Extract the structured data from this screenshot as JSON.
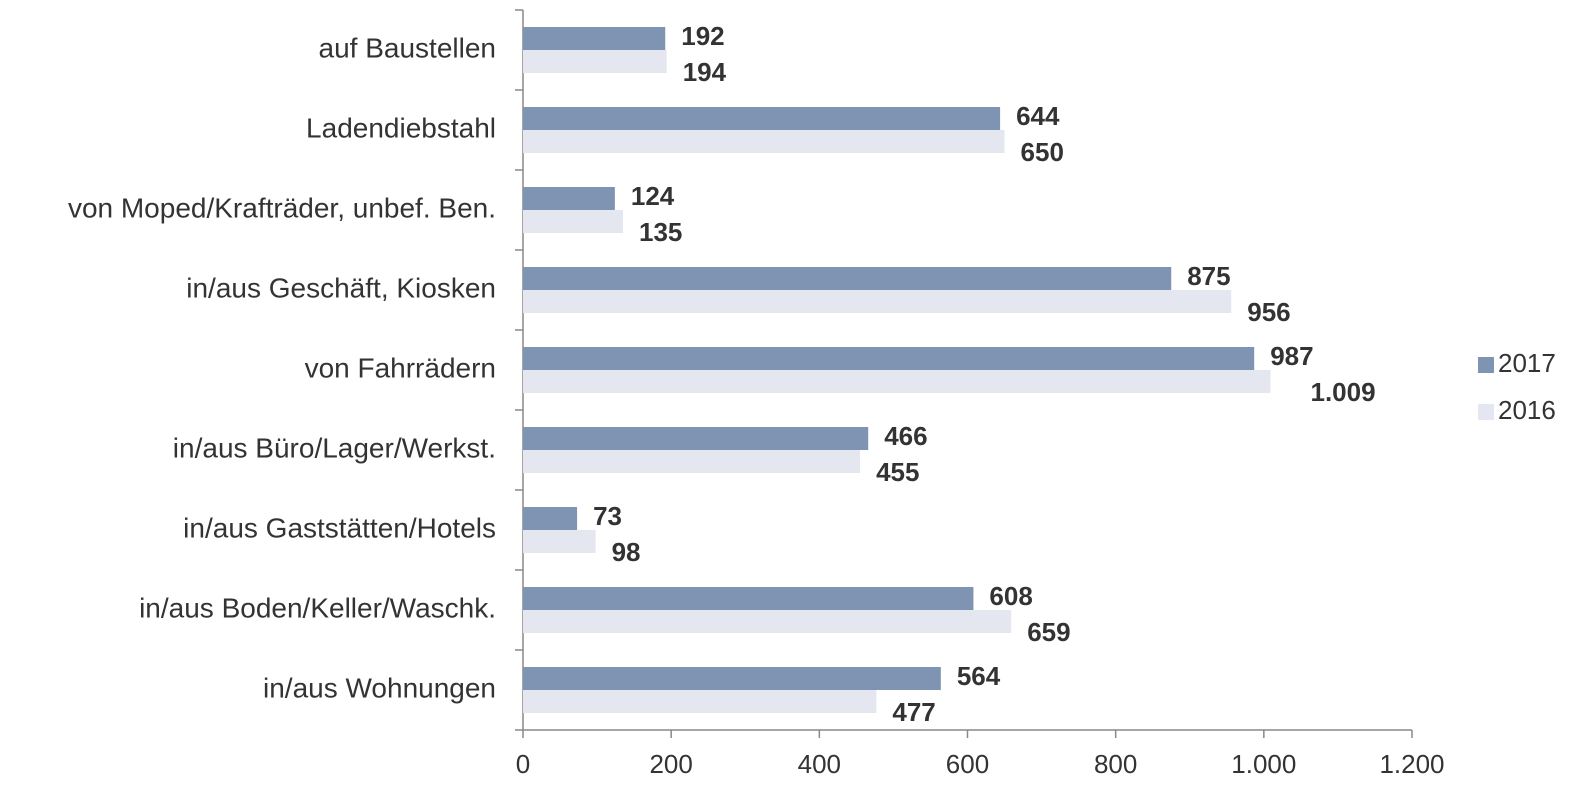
{
  "chart_data": {
    "type": "bar",
    "orientation": "horizontal",
    "categories": [
      "auf Baustellen",
      "Ladendiebstahl",
      "von Moped/Krafträder, unbef. Ben.",
      "in/aus Geschäft, Kiosken",
      "von Fahrrädern",
      "in/aus Büro/Lager/Werkst.",
      "in/aus Gaststätten/Hotels",
      "in/aus Boden/Keller/Waschk.",
      "in/aus Wohnungen"
    ],
    "series": [
      {
        "name": "2017",
        "color": "#7f93b3",
        "values": [
          192,
          644,
          124,
          875,
          987,
          466,
          73,
          608,
          564
        ]
      },
      {
        "name": "2016",
        "color": "#e4e7ef",
        "values": [
          194,
          650,
          135,
          956,
          1009,
          455,
          98,
          659,
          477
        ],
        "value_labels": [
          "194",
          "650",
          "135",
          "956",
          "1.009",
          "455",
          "98",
          "659",
          "477"
        ]
      }
    ],
    "xlim": [
      0,
      1200
    ],
    "xticks": [
      0,
      200,
      400,
      600,
      800,
      {
        "value": 1000,
        "label": "1.000"
      },
      {
        "value": 1200,
        "label": "1.200"
      }
    ],
    "legend": "right"
  }
}
